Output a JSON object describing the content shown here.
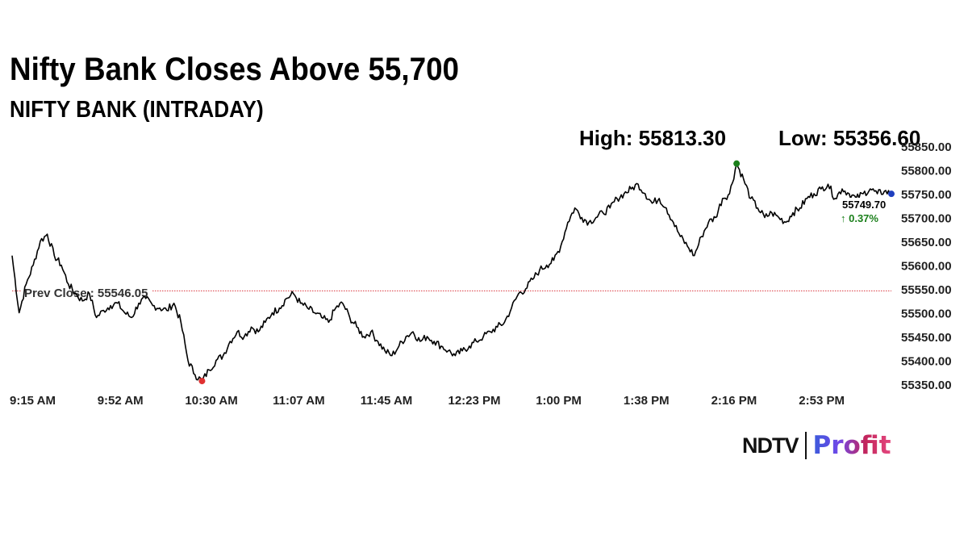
{
  "headline": "Nifty Bank Closes Above 55,700",
  "subtitle": "NIFTY BANK (INTRADAY)",
  "high_label": "High: 55813.30",
  "low_label": "Low: 55356.60",
  "prev_close_label": "Prev Close : 55546.05",
  "last_price_label": "55749.70",
  "change_label": "↑ 0.37%",
  "logo": {
    "ndtv": "NDTV",
    "profit": "Profit"
  },
  "colors": {
    "line": "#000000",
    "prev_close": "#d9363e",
    "high_dot": "#1a7f1a",
    "low_dot": "#e03131",
    "last_dot": "#1f3fbf",
    "change": "#1a7f1a"
  },
  "chart_data": {
    "type": "line",
    "title": "NIFTY BANK (INTRADAY)",
    "x_ticks": [
      "9:15 AM",
      "9:52 AM",
      "10:30 AM",
      "11:07 AM",
      "11:45 AM",
      "12:23 PM",
      "1:00 PM",
      "1:38 PM",
      "2:16 PM",
      "2:53 PM"
    ],
    "y_ticks": [
      "55850.00",
      "55800.00",
      "55750.00",
      "55700.00",
      "55650.00",
      "55600.00",
      "55550.00",
      "55500.00",
      "55450.00",
      "55400.00",
      "55350.00"
    ],
    "y_tick_values": [
      55850,
      55800,
      55750,
      55700,
      55650,
      55600,
      55550,
      55500,
      55450,
      55400,
      55350
    ],
    "ylim": [
      55350,
      55850
    ],
    "prev_close": 55546.05,
    "high": 55813.3,
    "low": 55356.6,
    "last": 55749.7,
    "change_pct": 0.37,
    "grid": false,
    "series": [
      {
        "x": [
          "9:15 AM",
          "9:18 AM",
          "9:21 AM",
          "9:24 AM",
          "9:27 AM",
          "9:30 AM",
          "9:33 AM",
          "9:36 AM",
          "9:39 AM",
          "9:42 AM",
          "9:45 AM",
          "9:48 AM",
          "9:51 AM",
          "9:54 AM",
          "9:57 AM",
          "10:00 AM",
          "10:03 AM",
          "10:06 AM",
          "10:09 AM",
          "10:12 AM",
          "10:15 AM",
          "10:18 AM",
          "10:21 AM",
          "10:24 AM",
          "10:27 AM",
          "10:30 AM",
          "10:33 AM",
          "10:36 AM",
          "10:39 AM",
          "10:42 AM",
          "10:45 AM",
          "10:48 AM",
          "10:51 AM",
          "10:54 AM",
          "10:57 AM",
          "11:00 AM",
          "11:03 AM",
          "11:06 AM",
          "11:09 AM",
          "11:12 AM",
          "11:15 AM",
          "11:18 AM",
          "11:21 AM",
          "11:24 AM",
          "11:27 AM",
          "11:30 AM",
          "11:33 AM",
          "11:36 AM",
          "11:39 AM",
          "11:42 AM",
          "11:45 AM",
          "11:48 AM",
          "11:51 AM",
          "11:54 AM",
          "11:57 AM",
          "12:00 PM",
          "12:03 PM",
          "12:06 PM",
          "12:09 PM",
          "12:12 PM",
          "12:15 PM",
          "12:18 PM",
          "12:21 PM",
          "12:24 PM",
          "12:27 PM",
          "12:30 PM",
          "12:33 PM",
          "12:36 PM",
          "12:39 PM",
          "12:42 PM",
          "12:45 PM",
          "12:48 PM",
          "12:51 PM",
          "12:54 PM",
          "12:57 PM",
          "1:00 PM",
          "1:03 PM",
          "1:06 PM",
          "1:09 PM",
          "1:12 PM",
          "1:15 PM",
          "1:18 PM",
          "1:21 PM",
          "1:24 PM",
          "1:27 PM",
          "1:30 PM",
          "1:33 PM",
          "1:36 PM",
          "1:39 PM",
          "1:42 PM",
          "1:45 PM",
          "1:48 PM",
          "1:51 PM",
          "1:54 PM",
          "1:57 PM",
          "2:00 PM",
          "2:03 PM",
          "2:06 PM",
          "2:09 PM",
          "2:12 PM",
          "2:15 PM",
          "2:18 PM",
          "2:21 PM",
          "2:24 PM",
          "2:27 PM",
          "2:30 PM",
          "2:33 PM",
          "2:36 PM",
          "2:39 PM",
          "2:42 PM",
          "2:45 PM",
          "2:48 PM",
          "2:51 PM",
          "2:54 PM",
          "2:57 PM",
          "3:00 PM",
          "3:03 PM",
          "3:06 PM",
          "3:09 PM",
          "3:12 PM",
          "3:15 PM",
          "3:18 PM",
          "3:21 PM",
          "3:24 PM",
          "3:27 PM",
          "3:29 PM"
        ],
        "values": [
          55620,
          55500,
          55560,
          55600,
          55650,
          55665,
          55620,
          55600,
          55560,
          55540,
          55525,
          55540,
          55490,
          55505,
          55515,
          55520,
          55500,
          55490,
          55520,
          55530,
          55515,
          55510,
          55505,
          55520,
          55480,
          55400,
          55370,
          55356.6,
          55380,
          55400,
          55410,
          55440,
          55460,
          55450,
          55470,
          55460,
          55480,
          55500,
          55510,
          55530,
          55540,
          55520,
          55510,
          55500,
          55490,
          55480,
          55510,
          55520,
          55490,
          55470,
          55450,
          55460,
          55440,
          55420,
          55410,
          55430,
          55450,
          55460,
          55440,
          55450,
          55440,
          55430,
          55420,
          55410,
          55420,
          55430,
          55440,
          55450,
          55460,
          55470,
          55480,
          55510,
          55540,
          55550,
          55570,
          55590,
          55600,
          55610,
          55640,
          55690,
          55720,
          55700,
          55690,
          55700,
          55710,
          55720,
          55740,
          55750,
          55760,
          55770,
          55750,
          55730,
          55740,
          55720,
          55690,
          55660,
          55640,
          55620,
          55660,
          55690,
          55700,
          55740,
          55750,
          55813.3,
          55780,
          55740,
          55720,
          55700,
          55710,
          55700,
          55690,
          55710,
          55720,
          55740,
          55750,
          55760,
          55770,
          55740,
          55760,
          55750,
          55740,
          55750,
          55760,
          55750,
          55755,
          55749.7
        ]
      }
    ]
  }
}
